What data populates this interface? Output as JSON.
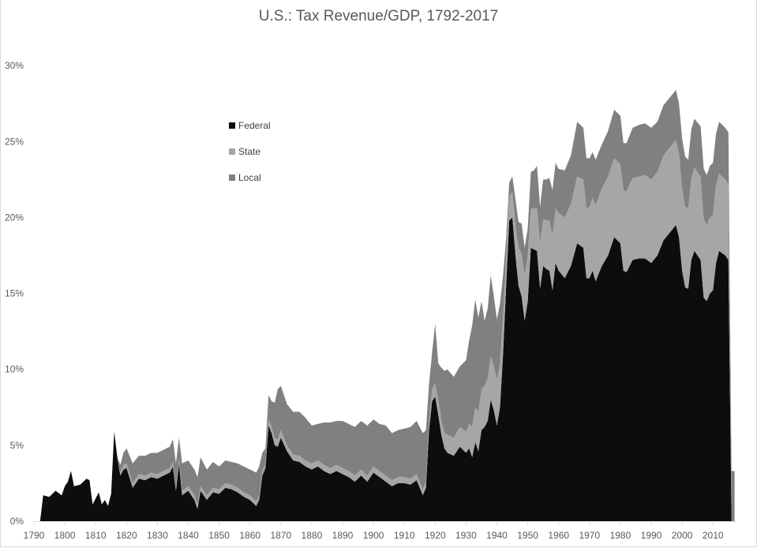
{
  "chart_data": {
    "type": "area",
    "stacked": true,
    "title": "U.S.: Tax Revenue/GDP, 1792-2017",
    "xlabel": "",
    "ylabel": "",
    "ylim": [
      0,
      30
    ],
    "xlim": [
      1790,
      2017
    ],
    "grid": false,
    "legend_position": "upper-left-inside",
    "x_ticks": [
      "1790",
      "1800",
      "1810",
      "1820",
      "1830",
      "1840",
      "1850",
      "1860",
      "1870",
      "1880",
      "1890",
      "1900",
      "1910",
      "1920",
      "1930",
      "1940",
      "1950",
      "1960",
      "1970",
      "1980",
      "1990",
      "2000",
      "2010"
    ],
    "y_ticks": [
      "0%",
      "5%",
      "10%",
      "15%",
      "20%",
      "25%",
      "30%"
    ],
    "x": [
      1792,
      1793,
      1795,
      1797,
      1799,
      1800,
      1801,
      1802,
      1803,
      1805,
      1807,
      1808,
      1809,
      1811,
      1812,
      1813,
      1814,
      1815,
      1816,
      1817,
      1818,
      1819,
      1820,
      1822,
      1824,
      1826,
      1828,
      1830,
      1832,
      1834,
      1835,
      1836,
      1837,
      1838,
      1840,
      1842,
      1843,
      1844,
      1846,
      1848,
      1850,
      1852,
      1854,
      1856,
      1858,
      1860,
      1862,
      1863,
      1864,
      1865,
      1866,
      1867,
      1868,
      1869,
      1870,
      1872,
      1874,
      1876,
      1878,
      1880,
      1882,
      1884,
      1886,
      1888,
      1890,
      1892,
      1894,
      1896,
      1898,
      1900,
      1902,
      1904,
      1906,
      1908,
      1910,
      1912,
      1914,
      1916,
      1917,
      1918,
      1919,
      1920,
      1921,
      1922,
      1923,
      1924,
      1926,
      1928,
      1930,
      1931,
      1932,
      1933,
      1934,
      1935,
      1936,
      1937,
      1938,
      1939,
      1940,
      1941,
      1942,
      1943,
      1944,
      1945,
      1946,
      1947,
      1948,
      1949,
      1950,
      1951,
      1952,
      1953,
      1954,
      1955,
      1956,
      1957,
      1958,
      1959,
      1960,
      1962,
      1964,
      1966,
      1968,
      1969,
      1970,
      1971,
      1972,
      1974,
      1976,
      1978,
      1980,
      1981,
      1982,
      1983,
      1984,
      1986,
      1988,
      1990,
      1992,
      1994,
      1996,
      1998,
      1999,
      2000,
      2001,
      2002,
      2003,
      2004,
      2006,
      2007,
      2008,
      2009,
      2010,
      2011,
      2012,
      2014,
      2015,
      2016,
      2017
    ],
    "series": [
      {
        "name": "Federal",
        "color": "#0d0d0d",
        "values": [
          0.0,
          1.7,
          1.6,
          2.0,
          1.7,
          2.3,
          2.6,
          3.3,
          2.3,
          2.4,
          2.8,
          2.7,
          1.1,
          1.9,
          1.1,
          1.4,
          1.0,
          1.8,
          5.9,
          4.2,
          3.0,
          3.4,
          3.5,
          2.2,
          2.8,
          2.7,
          2.9,
          2.8,
          3.0,
          3.2,
          3.6,
          2.0,
          3.8,
          1.7,
          2.0,
          1.4,
          0.8,
          2.0,
          1.4,
          1.9,
          1.8,
          2.2,
          2.1,
          1.9,
          1.6,
          1.4,
          1.0,
          1.4,
          3.0,
          3.5,
          6.3,
          5.8,
          5.0,
          4.9,
          5.5,
          4.6,
          4.0,
          3.9,
          3.6,
          3.4,
          3.6,
          3.3,
          3.1,
          3.3,
          3.1,
          2.9,
          2.6,
          3.0,
          2.6,
          3.2,
          2.9,
          2.6,
          2.3,
          2.5,
          2.5,
          2.4,
          2.7,
          1.7,
          2.2,
          6.0,
          7.9,
          8.2,
          7.0,
          5.7,
          4.8,
          4.5,
          4.3,
          4.9,
          4.5,
          4.8,
          4.2,
          5.2,
          4.6,
          6.0,
          6.2,
          6.6,
          8.0,
          7.3,
          6.3,
          7.5,
          11.0,
          15.5,
          19.8,
          20.0,
          17.5,
          15.5,
          14.8,
          13.2,
          14.5,
          18.0,
          17.9,
          17.8,
          15.3,
          16.8,
          16.6,
          16.5,
          15.2,
          17.0,
          16.5,
          16.0,
          16.8,
          18.3,
          18.0,
          16.0,
          16.0,
          16.5,
          15.8,
          16.8,
          17.5,
          18.7,
          18.3,
          16.5,
          16.4,
          16.8,
          17.2,
          17.3,
          17.3,
          17.0,
          17.5,
          18.5,
          19.0,
          19.5,
          18.7,
          16.5,
          15.4,
          15.3,
          17.2,
          17.8,
          17.2,
          14.7,
          14.5,
          15.0,
          15.2,
          17.0,
          17.8,
          17.5,
          17.2
        ]
      },
      {
        "name": "State",
        "color": "#a6a6a6",
        "values": [
          0,
          0,
          0,
          0,
          0,
          0,
          0,
          0,
          0,
          0,
          0,
          0,
          0,
          0,
          0,
          0,
          0,
          0,
          0,
          0,
          0.2,
          0.3,
          0.3,
          0.3,
          0.3,
          0.3,
          0.3,
          0.3,
          0.3,
          0.3,
          0.3,
          0.3,
          0.3,
          0.3,
          0.3,
          0.3,
          0.3,
          0.3,
          0.3,
          0.3,
          0.3,
          0.3,
          0.3,
          0.3,
          0.3,
          0.3,
          0.3,
          0.3,
          0.3,
          0.3,
          0.4,
          0.4,
          0.5,
          0.5,
          0.5,
          0.4,
          0.4,
          0.4,
          0.4,
          0.4,
          0.4,
          0.4,
          0.4,
          0.4,
          0.4,
          0.4,
          0.4,
          0.4,
          0.4,
          0.4,
          0.4,
          0.4,
          0.4,
          0.4,
          0.4,
          0.4,
          0.4,
          0.4,
          0.4,
          0.5,
          0.8,
          0.9,
          1.0,
          1.0,
          1.0,
          1.2,
          1.2,
          1.3,
          1.4,
          1.6,
          2.0,
          2.3,
          2.6,
          2.7,
          2.7,
          2.8,
          2.9,
          2.9,
          3.0,
          2.9,
          2.5,
          1.9,
          1.6,
          1.7,
          2.0,
          2.5,
          2.8,
          3.0,
          3.0,
          2.6,
          2.7,
          2.8,
          3.0,
          3.1,
          3.2,
          3.3,
          3.6,
          3.6,
          3.8,
          4.0,
          4.1,
          4.4,
          4.5,
          4.6,
          4.7,
          4.8,
          5.0,
          5.1,
          5.2,
          5.2,
          5.2,
          5.3,
          5.3,
          5.4,
          5.4,
          5.4,
          5.5,
          5.5,
          5.5,
          5.6,
          5.6,
          5.6,
          5.5,
          5.4,
          5.3,
          5.3,
          5.4,
          5.5,
          5.5,
          5.2,
          5.0,
          5.0,
          5.0,
          5.1,
          5.1,
          5.0,
          5.0
        ]
      },
      {
        "name": "Local",
        "color": "#808080",
        "values": [
          0,
          0,
          0,
          0,
          0,
          0,
          0,
          0,
          0,
          0,
          0,
          0,
          0,
          0,
          0,
          0,
          0,
          0,
          0,
          0,
          0.5,
          0.8,
          1.0,
          1.3,
          1.2,
          1.3,
          1.3,
          1.4,
          1.4,
          1.4,
          1.5,
          1.5,
          1.4,
          1.8,
          1.7,
          1.7,
          1.8,
          1.9,
          1.7,
          1.7,
          1.5,
          1.5,
          1.5,
          1.6,
          1.7,
          1.7,
          1.9,
          1.9,
          1.2,
          1.0,
          1.6,
          1.7,
          2.3,
          3.3,
          2.9,
          2.7,
          2.8,
          2.9,
          2.8,
          2.5,
          2.4,
          2.8,
          3.0,
          2.9,
          3.1,
          3.1,
          3.2,
          3.2,
          3.3,
          3.1,
          3.1,
          3.3,
          3.1,
          3.1,
          3.2,
          3.4,
          3.5,
          3.7,
          3.4,
          2.5,
          2.4,
          3.9,
          2.4,
          3.4,
          4.1,
          4.3,
          4.0,
          4.0,
          4.7,
          5.5,
          6.7,
          7.1,
          6.2,
          5.8,
          4.3,
          4.6,
          5.3,
          4.6,
          4.0,
          3.9,
          2.7,
          1.2,
          0.9,
          1.0,
          1.7,
          1.7,
          2.0,
          1.8,
          1.8,
          2.4,
          2.5,
          2.8,
          2.4,
          2.6,
          2.7,
          2.8,
          3.0,
          3.0,
          2.9,
          3.1,
          3.2,
          3.6,
          3.4,
          3.3,
          3.2,
          3.0,
          3.0,
          2.9,
          3.0,
          3.2,
          3.2,
          3.1,
          3.2,
          3.2,
          3.3,
          3.4,
          3.4,
          3.4,
          3.3,
          3.3,
          3.3,
          3.3,
          3.3,
          3.3,
          3.3,
          3.2,
          3.2,
          3.2,
          3.3,
          3.3,
          3.3,
          3.4,
          3.4,
          3.4,
          3.4,
          3.4,
          3.4,
          3.3,
          3.3
        ]
      }
    ]
  },
  "legend": {
    "items": [
      {
        "label": "Federal",
        "color": "#0d0d0d"
      },
      {
        "label": "State",
        "color": "#a6a6a6"
      },
      {
        "label": "Local",
        "color": "#808080"
      }
    ]
  }
}
